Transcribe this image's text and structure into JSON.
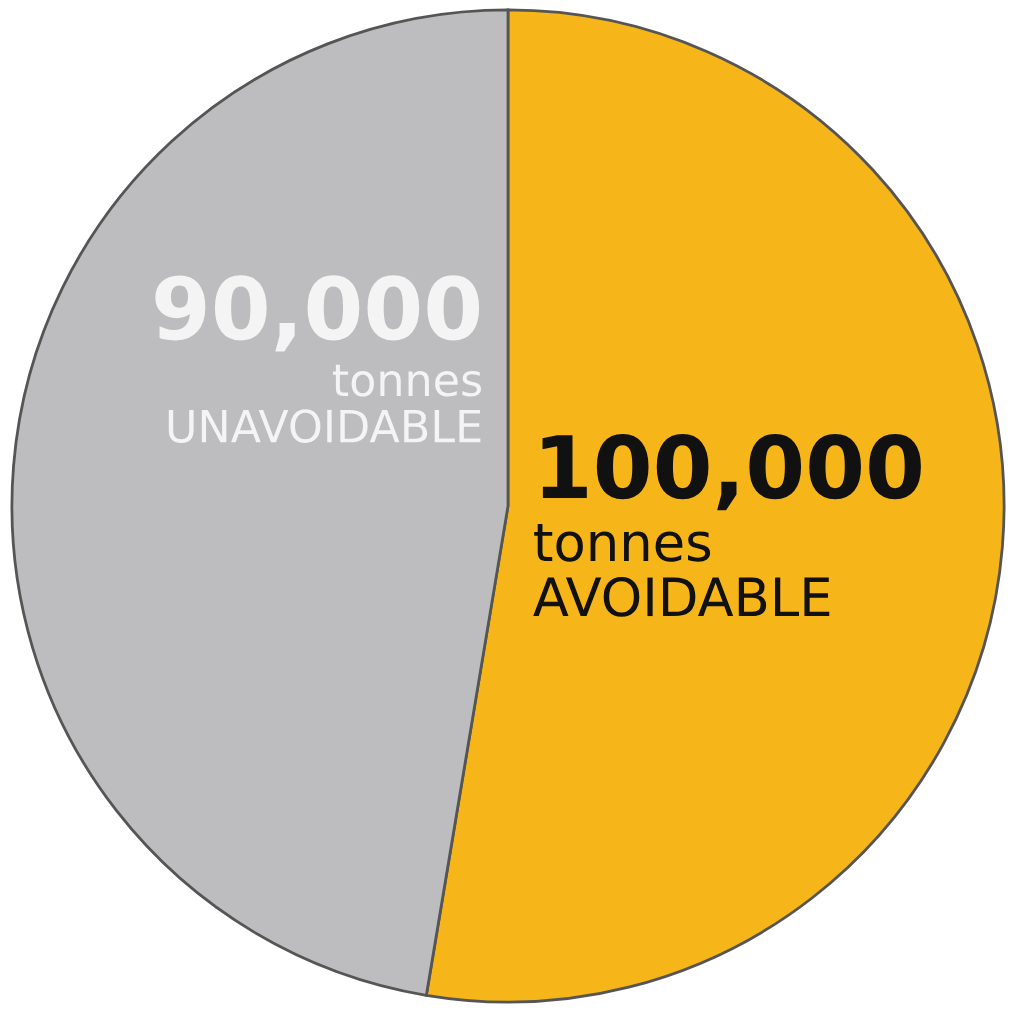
{
  "chart_data": {
    "type": "pie",
    "categories": [
      "tonnes\nAVOIDABLE",
      "tonnes\nUNAVOIDABLE"
    ],
    "values": [
      100000,
      90000
    ],
    "value_labels": [
      "100,000",
      "90,000"
    ],
    "colors": [
      "#f6b519",
      "#bdbdbf"
    ]
  }
}
